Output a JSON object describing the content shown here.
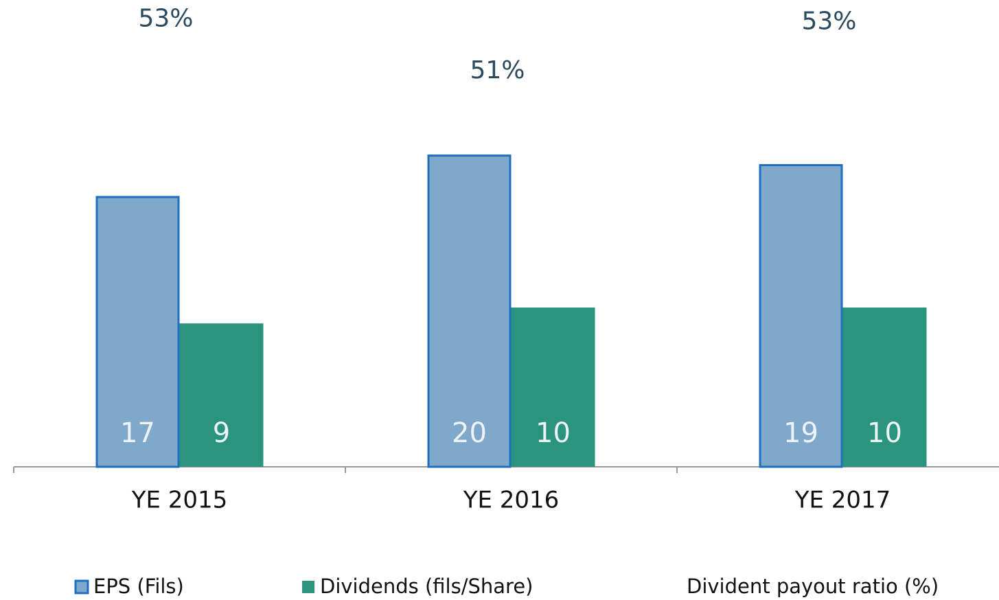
{
  "chart_data": {
    "type": "bar",
    "categories": [
      "YE 2015",
      "YE 2016",
      "YE 2017"
    ],
    "series": [
      {
        "name": "EPS (Fils)",
        "color": "#7fa8ca",
        "edge_color": "#1f6fc0",
        "values": [
          17,
          19.6,
          19
        ],
        "value_labels": [
          "17",
          "20",
          "19"
        ]
      },
      {
        "name": "Dividends (fils/Share)",
        "color": "#2a957c",
        "values": [
          9,
          10,
          10
        ]
      },
      {
        "name": "Divident payout ratio (%)",
        "axis": "y2",
        "values": [
          53.1,
          51,
          53
        ],
        "value_labels": [
          "53%",
          "51%",
          "53%"
        ]
      }
    ],
    "ylim": [
      0,
      29.3
    ],
    "y2lim": [
      35.6,
      54.6
    ]
  }
}
